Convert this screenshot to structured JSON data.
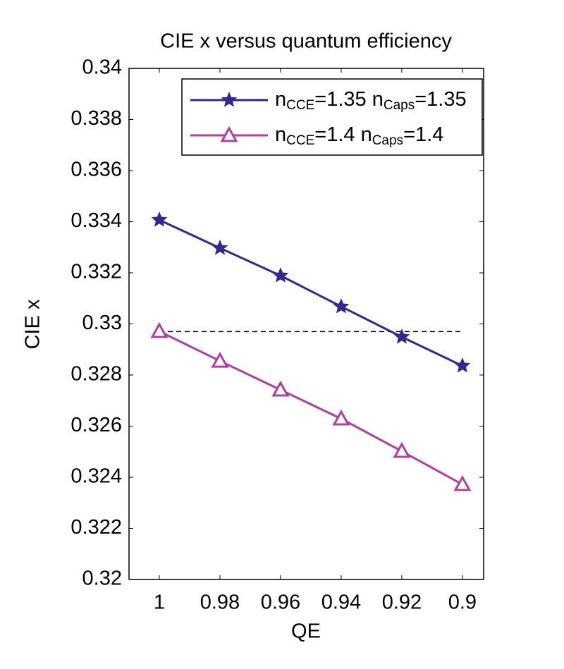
{
  "chart_data": {
    "type": "line",
    "title": "CIE x versus quantum efficiency",
    "x_label": "QE",
    "y_label": "CIE x",
    "x": [
      1,
      0.98,
      0.96,
      0.94,
      0.92,
      0.9
    ],
    "series": [
      {
        "name": "nCCE=1.35 nCaps=1.35",
        "color": "#35278f",
        "marker": "star",
        "values": [
          0.33407,
          0.33297,
          0.33189,
          0.33068,
          0.32949,
          0.32836
        ]
      },
      {
        "name": "nCCE=1.4 nCaps=1.4",
        "color": "#b0409f",
        "marker": "triangle",
        "values": [
          0.32971,
          0.32855,
          0.32742,
          0.32629,
          0.32502,
          0.32372
        ]
      }
    ],
    "reference_line": {
      "x": [
        1,
        0.9
      ],
      "y": 0.3297,
      "color": "#000000"
    },
    "xlim": [
      1.01,
      0.893
    ],
    "ylim": [
      0.32,
      0.34
    ],
    "xticks": [
      1,
      0.98,
      0.96,
      0.94,
      0.92,
      0.9
    ],
    "yticks": [
      0.32,
      0.322,
      0.324,
      0.326,
      0.328,
      0.33,
      0.332,
      0.334,
      0.336,
      0.338,
      0.34
    ],
    "grid": false,
    "legend": "upper right"
  }
}
